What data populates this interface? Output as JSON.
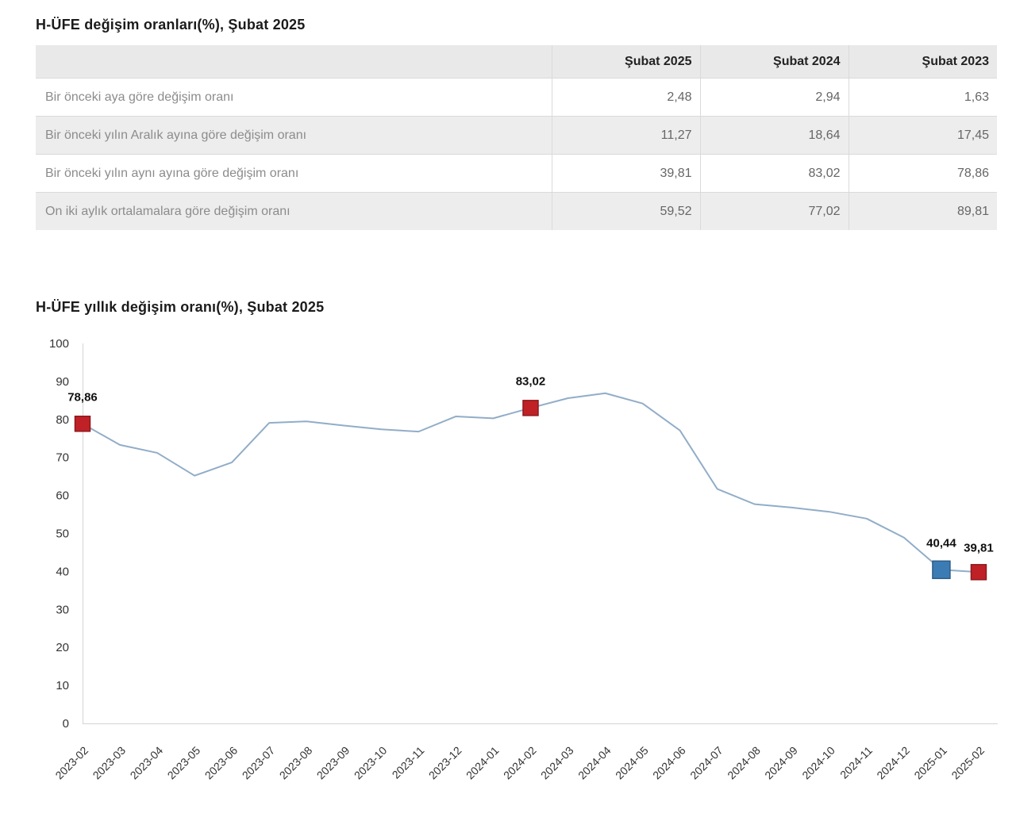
{
  "table_section": {
    "title": "H-ÜFE değişim oranları(%), Şubat 2025",
    "columns": [
      "Şubat 2025",
      "Şubat 2024",
      "Şubat 2023"
    ],
    "rows": [
      {
        "label": "Bir önceki aya göre değişim oranı",
        "values": [
          "2,48",
          "2,94",
          "1,63"
        ]
      },
      {
        "label": "Bir önceki yılın Aralık ayına göre değişim oranı",
        "values": [
          "11,27",
          "18,64",
          "17,45"
        ]
      },
      {
        "label": "Bir önceki yılın aynı ayına göre değişim oranı",
        "values": [
          "39,81",
          "83,02",
          "78,86"
        ]
      },
      {
        "label": "On iki aylık ortalamalara göre değişim oranı",
        "values": [
          "59,52",
          "77,02",
          "89,81"
        ]
      }
    ]
  },
  "chart_section": {
    "title": "H-ÜFE yıllık değişim oranı(%), Şubat 2025"
  },
  "chart_data": {
    "type": "line",
    "title": "H-ÜFE yıllık değişim oranı(%), Şubat 2025",
    "x": [
      "2023-02",
      "2023-03",
      "2023-04",
      "2023-05",
      "2023-06",
      "2023-07",
      "2023-08",
      "2023-09",
      "2023-10",
      "2023-11",
      "2023-12",
      "2024-01",
      "2024-02",
      "2024-03",
      "2024-04",
      "2024-05",
      "2024-06",
      "2024-07",
      "2024-08",
      "2024-09",
      "2024-10",
      "2024-11",
      "2024-12",
      "2025-01",
      "2025-02"
    ],
    "values": [
      78.86,
      73.3,
      71.2,
      65.2,
      68.7,
      79.1,
      79.5,
      78.4,
      77.4,
      76.8,
      80.8,
      80.3,
      83.02,
      85.6,
      86.9,
      84.2,
      77.1,
      61.7,
      57.7,
      56.8,
      55.7,
      53.9,
      48.9,
      40.44,
      39.81
    ],
    "ylim": [
      0,
      100
    ],
    "ytick_step": 10,
    "grid": false,
    "legend": "none",
    "line_color": "#91adc8",
    "axis_color": "#d4d4d4",
    "tick_label_color": "#333333",
    "annotation_label_color": "#111111",
    "marker_colors": {
      "red": "#bf2127",
      "blue": "#3c7cb5"
    },
    "marker_strokes": {
      "red": "#8e181d",
      "blue": "#2d5d88"
    },
    "annotations": [
      {
        "x": "2023-02",
        "label": "78,86",
        "marker": "red"
      },
      {
        "x": "2024-02",
        "label": "83,02",
        "marker": "red"
      },
      {
        "x": "2025-01",
        "label": "40,44",
        "marker": "blue"
      },
      {
        "x": "2025-02",
        "label": "39,81",
        "marker": "red",
        "label_dy": 3
      }
    ]
  }
}
